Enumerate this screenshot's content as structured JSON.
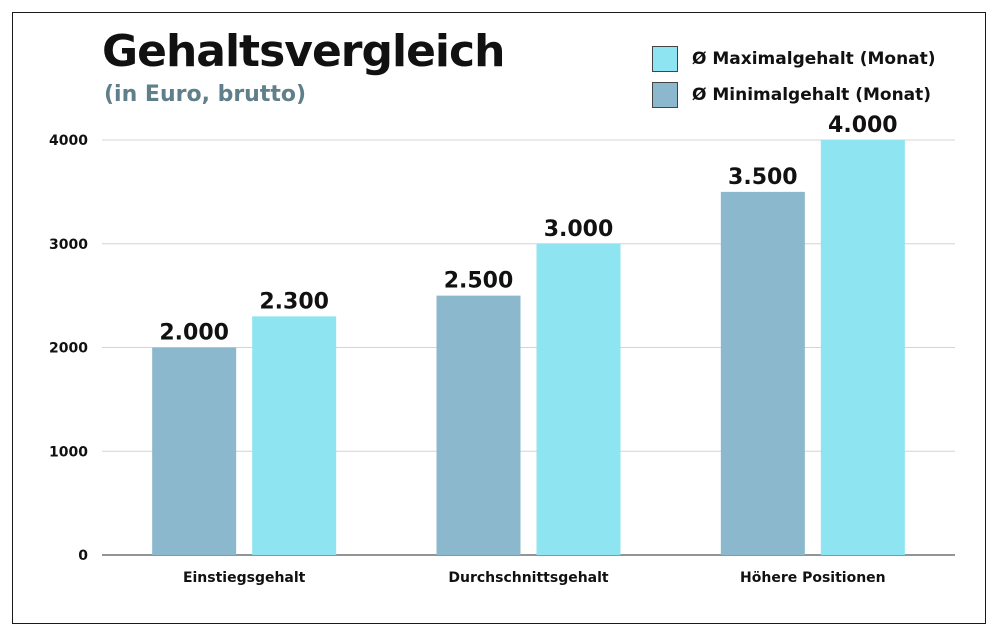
{
  "chart_data": {
    "type": "bar",
    "title": "Gehaltsvergleich",
    "subtitle": "(in Euro, brutto)",
    "categories": [
      "Einstiegsgehalt",
      "Durchschnittsgehalt",
      "Höhere Positionen"
    ],
    "series": [
      {
        "name": "Ø Minimalgehalt (Monat)",
        "color": "#8bb8cc",
        "values": [
          2000,
          2500,
          3500
        ],
        "labels": [
          "2.000",
          "2.500",
          "3.500"
        ]
      },
      {
        "name": "Ø Maximalgehalt (Monat)",
        "color": "#8ee4f0",
        "values": [
          2300,
          3000,
          4000
        ],
        "labels": [
          "2.300",
          "3.000",
          "4.000"
        ]
      }
    ],
    "legend_order": [
      1,
      0
    ],
    "legend_placement": "top-right",
    "ylim": [
      0,
      4000
    ],
    "yticks": [
      0,
      1000,
      2000,
      3000,
      4000
    ],
    "ytick_labels": [
      "0",
      "1000",
      "2000",
      "3000",
      "4000"
    ],
    "grid": true,
    "xlabel": "",
    "ylabel": ""
  }
}
